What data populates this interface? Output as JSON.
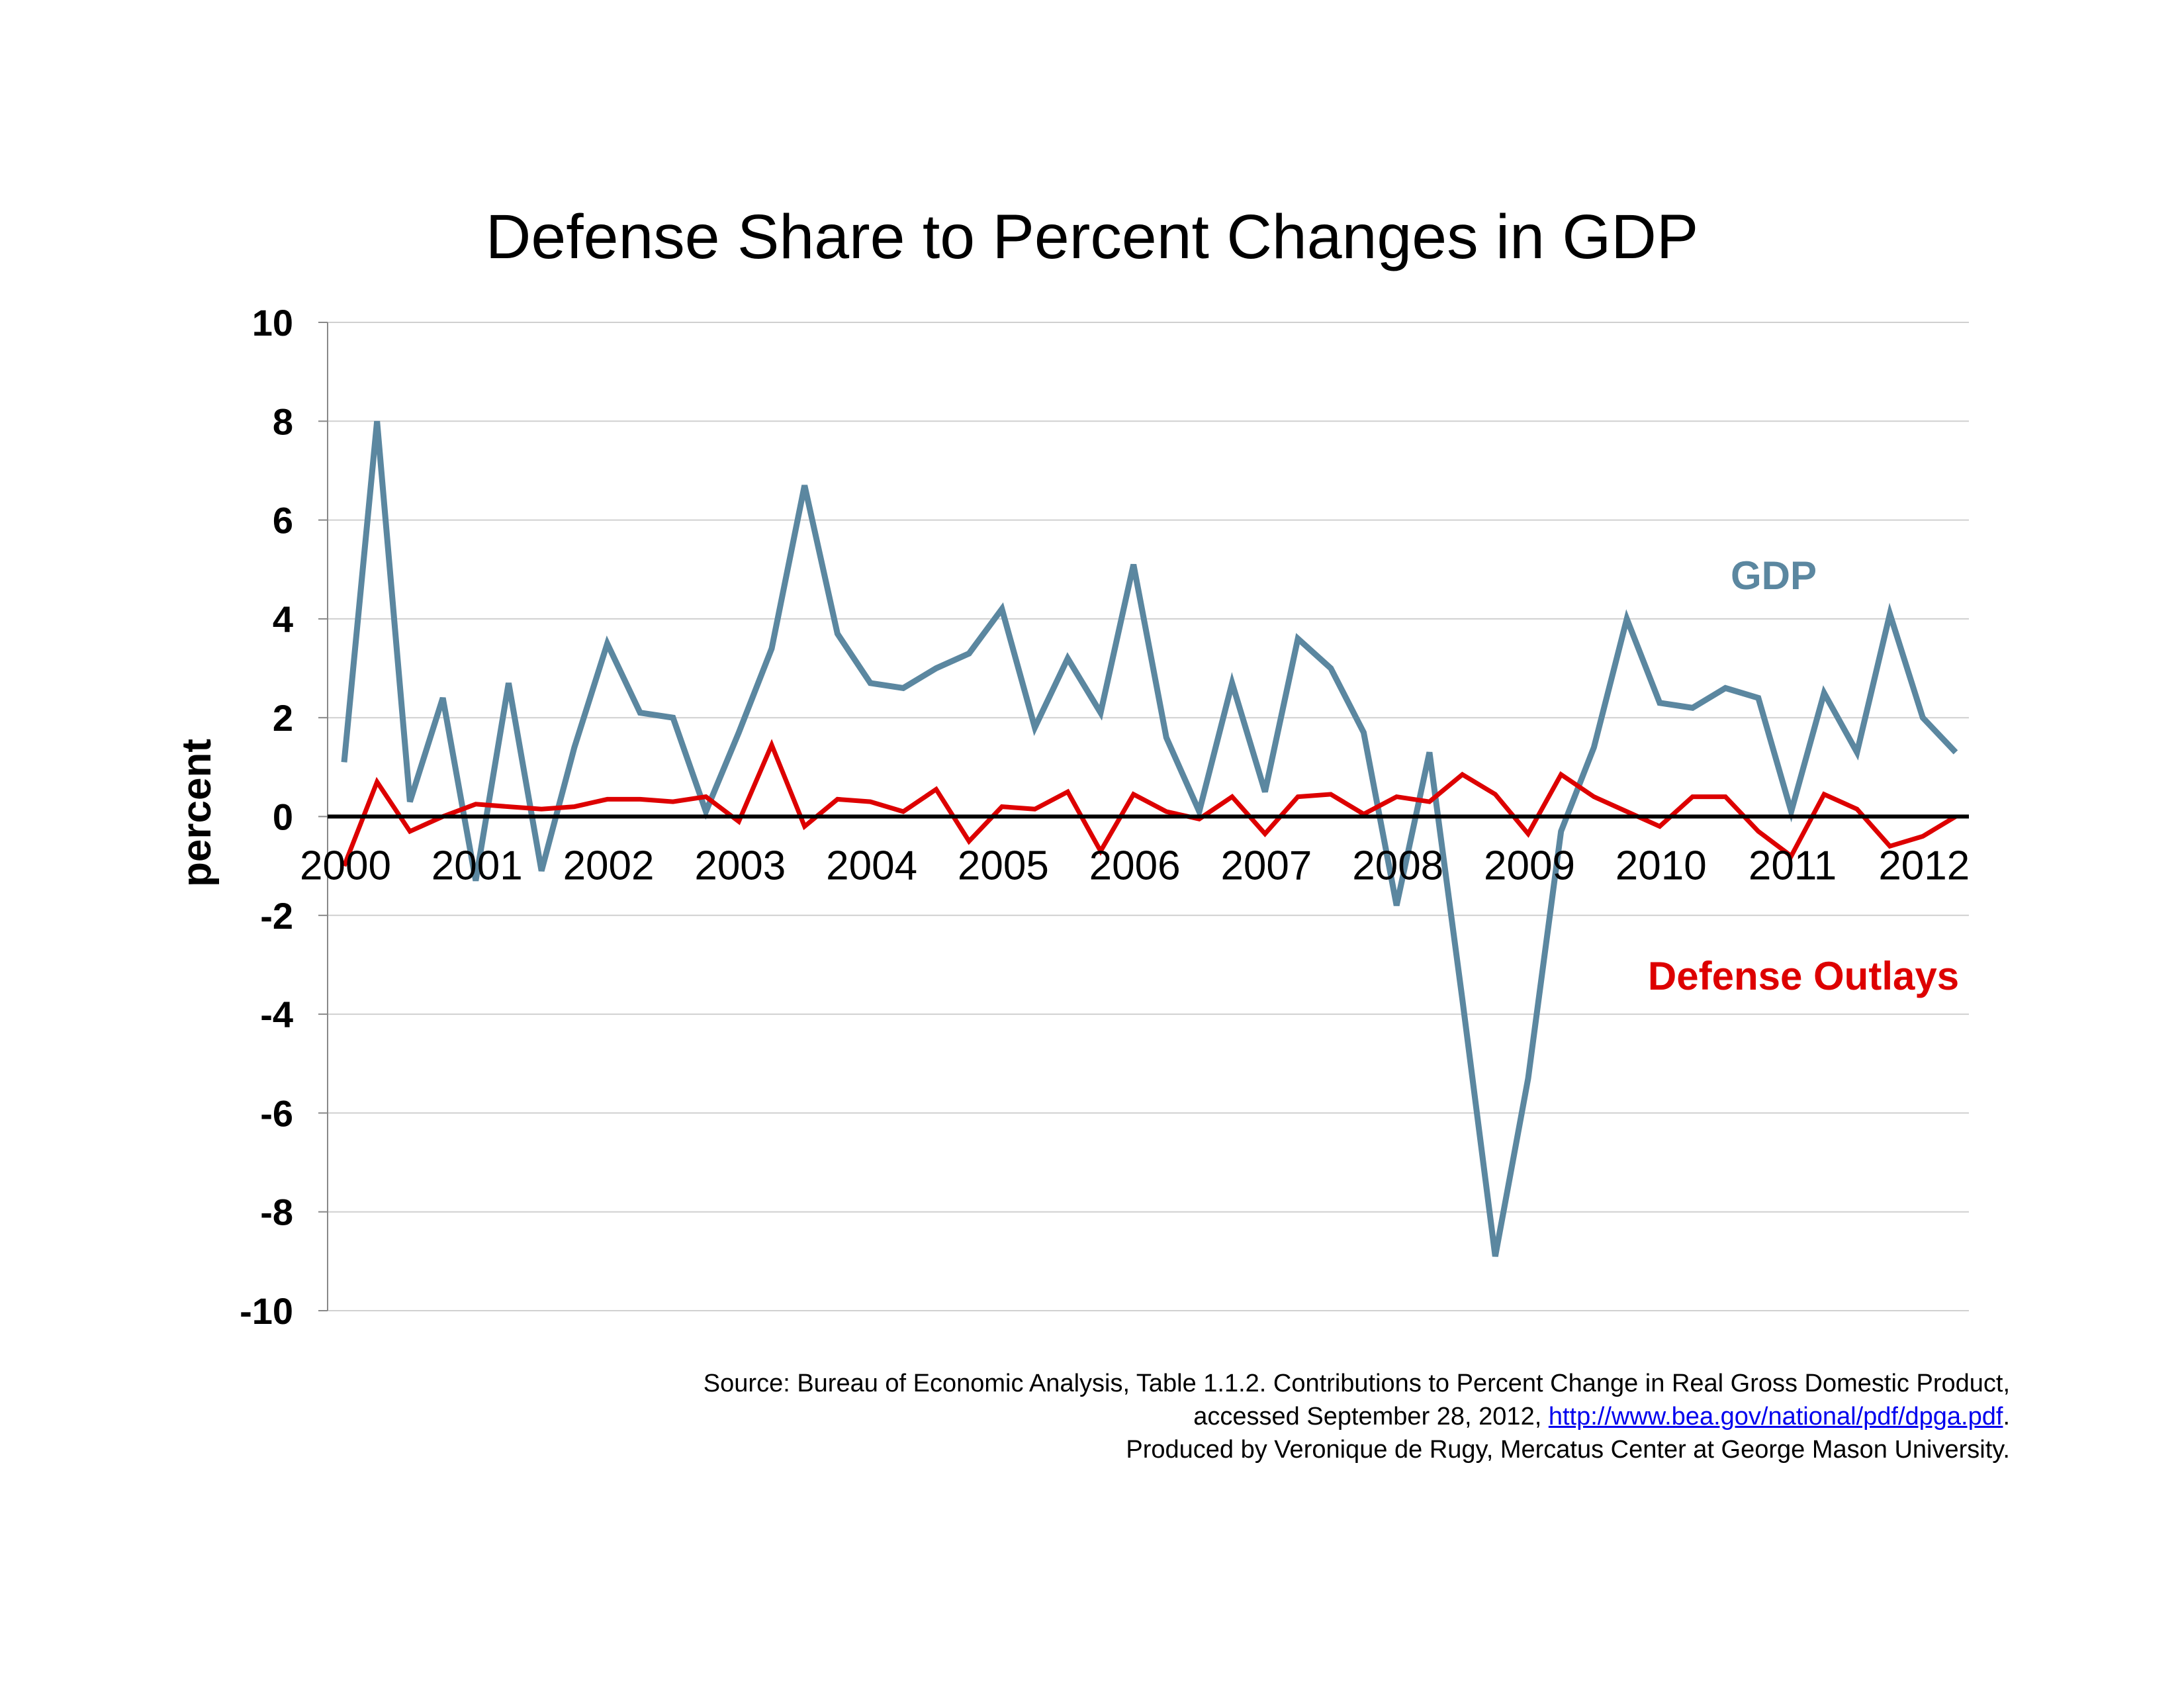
{
  "chart_data": {
    "type": "line",
    "title": "Defense Share to Percent Changes in GDP",
    "ylabel": "percent",
    "xlabel": "",
    "ylim": [
      -10,
      10
    ],
    "yticks": [
      10,
      8,
      6,
      4,
      2,
      0,
      -2,
      -4,
      -6,
      -8,
      -10
    ],
    "year_labels": [
      "2000",
      "2001",
      "2002",
      "2003",
      "2004",
      "2005",
      "2006",
      "2007",
      "2008",
      "2009",
      "2010",
      "2011",
      "2012"
    ],
    "x": [
      "2000 Q1",
      "2000 Q2",
      "2000 Q3",
      "2000 Q4",
      "2001 Q1",
      "2001 Q2",
      "2001 Q3",
      "2001 Q4",
      "2002 Q1",
      "2002 Q2",
      "2002 Q3",
      "2002 Q4",
      "2003 Q1",
      "2003 Q2",
      "2003 Q3",
      "2003 Q4",
      "2004 Q1",
      "2004 Q2",
      "2004 Q3",
      "2004 Q4",
      "2005 Q1",
      "2005 Q2",
      "2005 Q3",
      "2005 Q4",
      "2006 Q1",
      "2006 Q2",
      "2006 Q3",
      "2006 Q4",
      "2007 Q1",
      "2007 Q2",
      "2007 Q3",
      "2007 Q4",
      "2008 Q1",
      "2008 Q2",
      "2008 Q3",
      "2008 Q4",
      "2009 Q1",
      "2009 Q2",
      "2009 Q3",
      "2009 Q4",
      "2010 Q1",
      "2010 Q2",
      "2010 Q3",
      "2010 Q4",
      "2011 Q1",
      "2011 Q2",
      "2011 Q3",
      "2011 Q4",
      "2012 Q1",
      "2012 Q2"
    ],
    "grid": true,
    "series": [
      {
        "name": "GDP",
        "color": "#5b87a0",
        "values": [
          1.1,
          8.0,
          0.3,
          2.4,
          -1.3,
          2.7,
          -1.1,
          1.4,
          3.5,
          2.1,
          2.0,
          0.1,
          1.7,
          3.4,
          6.7,
          3.7,
          2.7,
          2.6,
          3.0,
          3.3,
          4.2,
          1.8,
          3.2,
          2.1,
          5.1,
          1.6,
          0.1,
          2.7,
          0.5,
          3.6,
          3.0,
          1.7,
          -1.8,
          1.3,
          -3.7,
          -8.9,
          -5.3,
          -0.3,
          1.4,
          4.0,
          2.3,
          2.2,
          2.6,
          2.4,
          0.1,
          2.5,
          1.3,
          4.1,
          2.0,
          1.3
        ]
      },
      {
        "name": "Defense Outlays",
        "color": "#dd0000",
        "values": [
          -1.0,
          0.7,
          -0.3,
          0.0,
          0.25,
          0.2,
          0.15,
          0.2,
          0.35,
          0.35,
          0.3,
          0.4,
          -0.1,
          1.45,
          -0.2,
          0.35,
          0.3,
          0.1,
          0.55,
          -0.5,
          0.2,
          0.15,
          0.5,
          -0.7,
          0.45,
          0.1,
          -0.05,
          0.4,
          -0.35,
          0.4,
          0.45,
          0.05,
          0.4,
          0.3,
          0.85,
          0.45,
          -0.35,
          0.85,
          0.4,
          0.1,
          -0.2,
          0.4,
          0.4,
          -0.3,
          -0.8,
          0.45,
          0.15,
          -0.6,
          -0.4,
          0.0
        ]
      }
    ]
  },
  "source": {
    "line1": "Source: Bureau of Economic Analysis, Table  1.1.2. Contributions to Percent Change in Real Gross Domestic Product,",
    "line2_prefix": "accessed September 28, 2012, ",
    "link_text": "http://www.bea.gov/national/pdf/dpga.pdf",
    "line2_suffix": ".",
    "line3": "Produced by Veronique de Rugy, Mercatus Center at George Mason University."
  }
}
